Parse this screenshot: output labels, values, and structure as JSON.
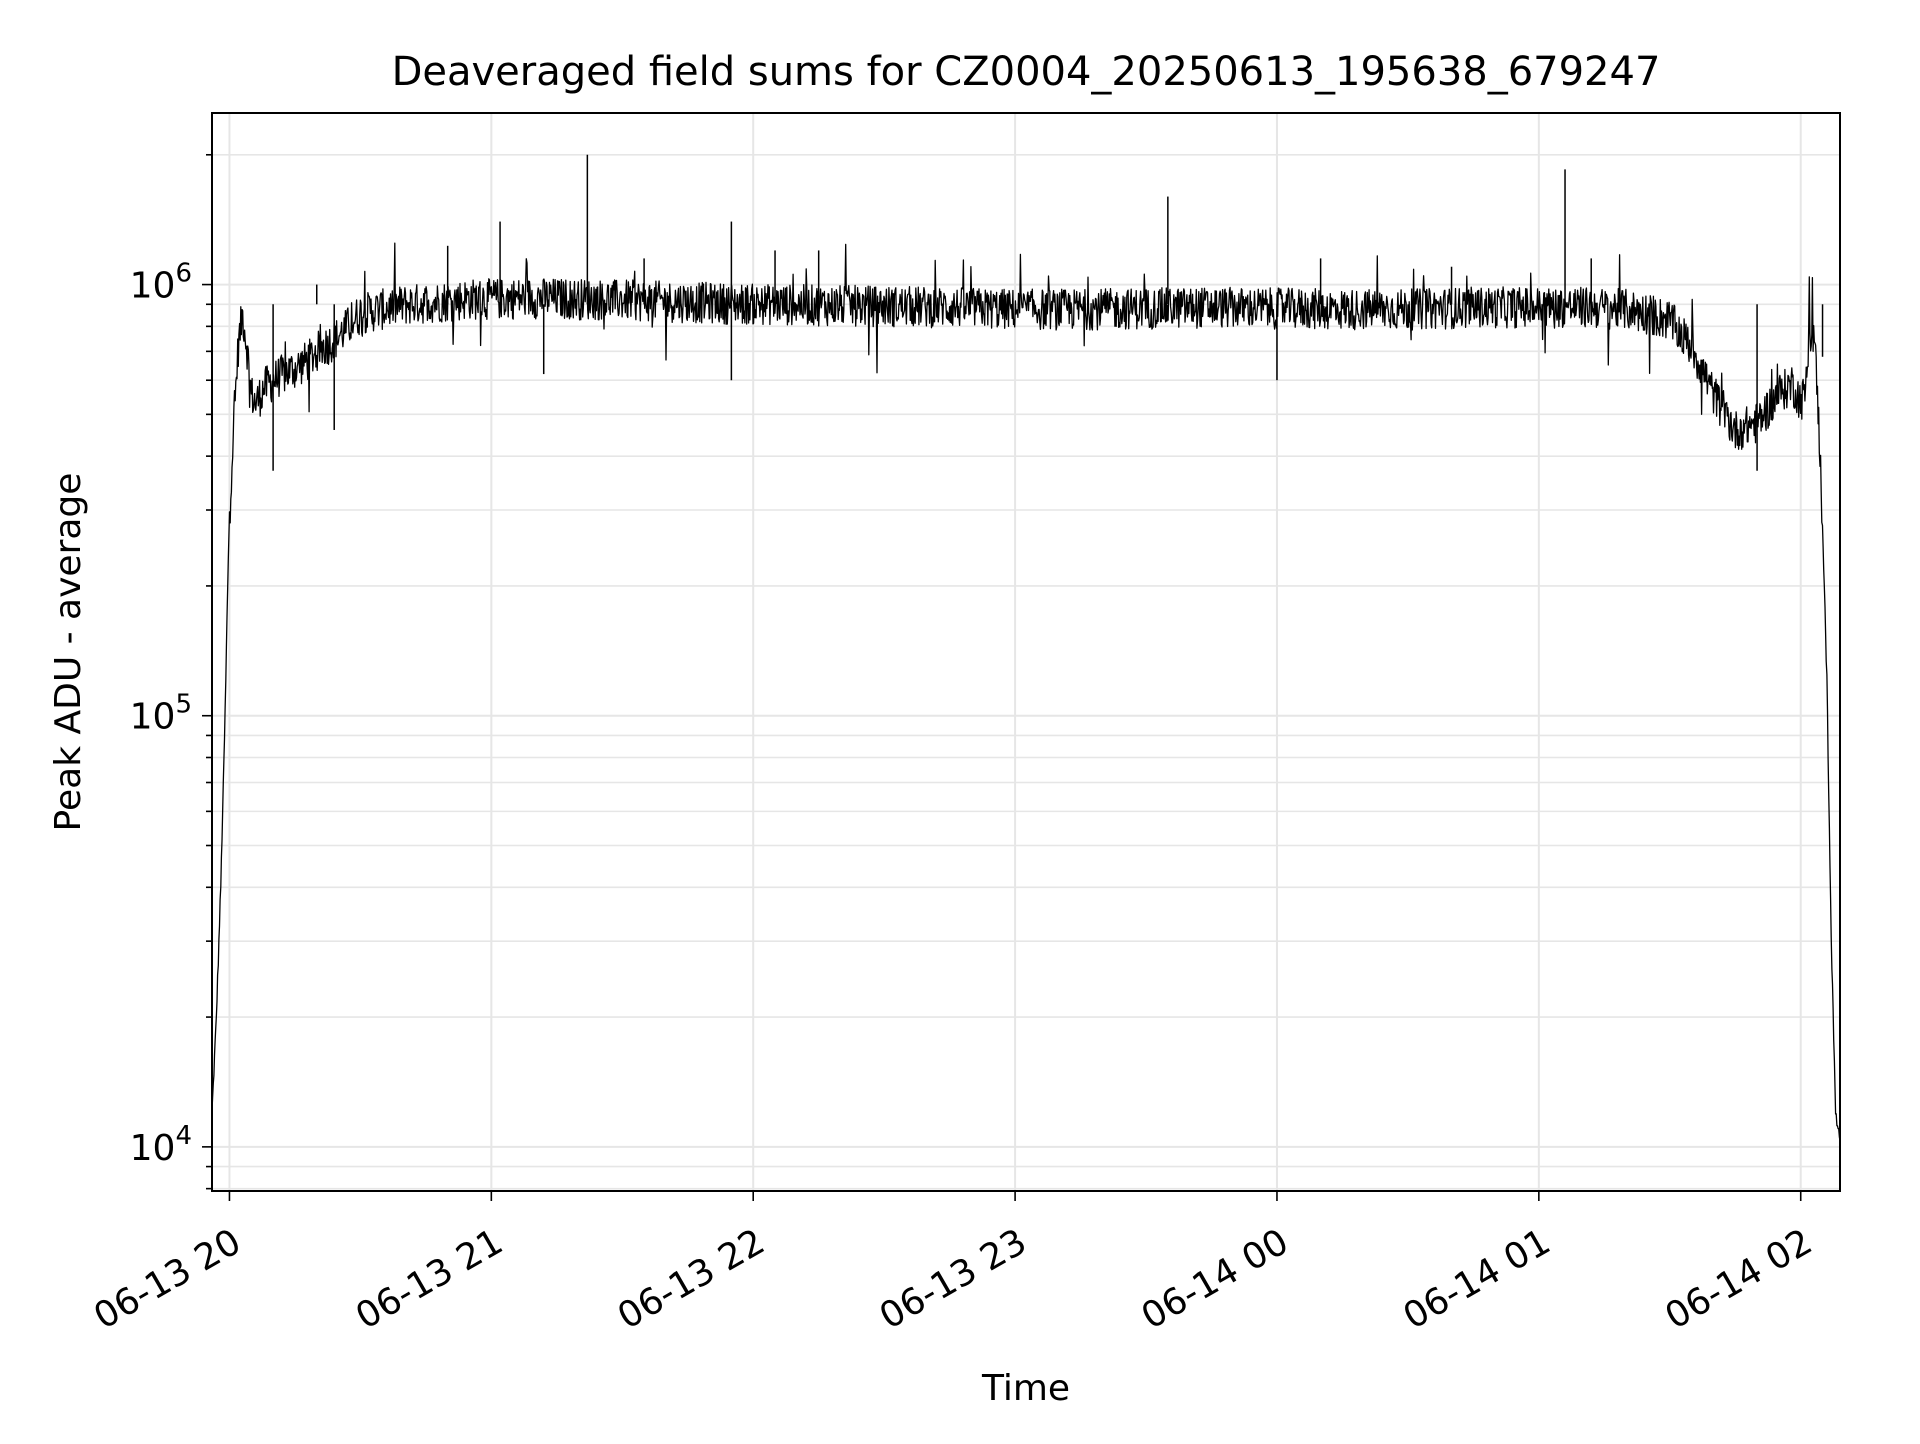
{
  "chart_data": {
    "type": "line",
    "title": "Deaveraged field sums for CZ0004_20250613_195638_679247",
    "xlabel": "Time",
    "ylabel": "Peak ADU - average",
    "xscale": "time",
    "yscale": "log",
    "xlim": [
      "2025-06-13 19:56",
      "2025-06-14 02:09"
    ],
    "ylim": [
      7900,
      2500000
    ],
    "grid": true,
    "legend": "none",
    "x_ticks": [
      {
        "t": "2025-06-13 20:00",
        "label": "06-13 20"
      },
      {
        "t": "2025-06-13 21:00",
        "label": "06-13 21"
      },
      {
        "t": "2025-06-13 22:00",
        "label": "06-13 22"
      },
      {
        "t": "2025-06-13 23:00",
        "label": "06-13 23"
      },
      {
        "t": "2025-06-14 00:00",
        "label": "06-14 00"
      },
      {
        "t": "2025-06-14 01:00",
        "label": "06-14 01"
      },
      {
        "t": "2025-06-14 02:00",
        "label": "06-14 02"
      }
    ],
    "y_ticks": [
      {
        "value": 10000,
        "base": "10",
        "exp": "4"
      },
      {
        "value": 100000,
        "base": "10",
        "exp": "5"
      },
      {
        "value": 1000000,
        "base": "10",
        "exp": "6"
      }
    ],
    "line_color": "#000000",
    "grid_color": "#e6e6e6",
    "series": [
      {
        "color": "#000000",
        "x": [
          "2025-06-13 19:56",
          "2025-06-13 19:57",
          "2025-06-13 19:58",
          "2025-06-13 19:59",
          "2025-06-13 19:59:30",
          "2025-06-13 20:00",
          "2025-06-13 20:01",
          "2025-06-13 20:02",
          "2025-06-13 20:03",
          "2025-06-13 20:04",
          "2025-06-13 20:05",
          "2025-06-13 20:06",
          "2025-06-13 20:08",
          "2025-06-13 20:10",
          "2025-06-13 20:12",
          "2025-06-13 20:15",
          "2025-06-13 20:18",
          "2025-06-13 20:20",
          "2025-06-13 20:25",
          "2025-06-13 20:30",
          "2025-06-13 20:35",
          "2025-06-13 20:40",
          "2025-06-13 20:45",
          "2025-06-13 20:50",
          "2025-06-13 20:55",
          "2025-06-13 21:00",
          "2025-06-13 21:10",
          "2025-06-13 21:20",
          "2025-06-13 21:30",
          "2025-06-13 21:45",
          "2025-06-13 22:00",
          "2025-06-13 22:15",
          "2025-06-13 22:30",
          "2025-06-13 22:45",
          "2025-06-13 23:00",
          "2025-06-13 23:15",
          "2025-06-13 23:30",
          "2025-06-13 23:45",
          "2025-06-14 00:00",
          "2025-06-14 00:15",
          "2025-06-14 00:30",
          "2025-06-14 00:45",
          "2025-06-14 01:00",
          "2025-06-14 01:10",
          "2025-06-14 01:20",
          "2025-06-14 01:25",
          "2025-06-14 01:30",
          "2025-06-14 01:35",
          "2025-06-14 01:40",
          "2025-06-14 01:45",
          "2025-06-14 01:50",
          "2025-06-14 01:55",
          "2025-06-14 01:58",
          "2025-06-14 02:00",
          "2025-06-14 02:01",
          "2025-06-14 02:02",
          "2025-06-14 02:03",
          "2025-06-14 02:04",
          "2025-06-14 02:05",
          "2025-06-14 02:06",
          "2025-06-14 02:07",
          "2025-06-14 02:08",
          "2025-06-14 02:09"
        ],
        "y": [
          12000,
          20000,
          40000,
          100000,
          180000,
          300000,
          480000,
          720000,
          860000,
          720000,
          560000,
          530000,
          580000,
          600000,
          620000,
          640000,
          670000,
          700000,
          760000,
          860000,
          880000,
          900000,
          910000,
          920000,
          930000,
          930000,
          935000,
          930000,
          925000,
          915000,
          905000,
          900000,
          895000,
          890000,
          880000,
          880000,
          885000,
          890000,
          885000,
          880000,
          880000,
          890000,
          890000,
          890000,
          880000,
          860000,
          830000,
          720000,
          560000,
          460000,
          480000,
          560000,
          590000,
          540000,
          560000,
          760000,
          780000,
          520000,
          280000,
          120000,
          30000,
          12000,
          10000
        ]
      }
    ],
    "spikes": [
      {
        "t": "2025-06-13 20:20",
        "y": 1000000
      },
      {
        "t": "2025-06-13 20:24",
        "y": 460000
      },
      {
        "t": "2025-06-13 20:50",
        "y": 1230000
      },
      {
        "t": "2025-06-13 21:02",
        "y": 1400000
      },
      {
        "t": "2025-06-13 21:22",
        "y": 2000000
      },
      {
        "t": "2025-06-13 21:35",
        "y": 1150000
      },
      {
        "t": "2025-06-13 21:55",
        "y": 1400000
      },
      {
        "t": "2025-06-13 22:05",
        "y": 1200000
      },
      {
        "t": "2025-06-13 22:15",
        "y": 1200000
      },
      {
        "t": "2025-06-13 23:35",
        "y": 1600000
      },
      {
        "t": "2025-06-14 00:10",
        "y": 1150000
      },
      {
        "t": "2025-06-14 00:40",
        "y": 1100000
      },
      {
        "t": "2025-06-14 01:06",
        "y": 1850000
      },
      {
        "t": "2025-06-14 01:12",
        "y": 1150000
      },
      {
        "t": "2025-06-14 00:00",
        "y": 600000
      },
      {
        "t": "2025-06-13 21:55",
        "y": 600000
      },
      {
        "t": "2025-06-13 21:12",
        "y": 620000
      },
      {
        "t": "2025-06-13 20:10",
        "y": 370000
      },
      {
        "t": "2025-06-14 01:50",
        "y": 370000
      },
      {
        "t": "2025-06-14 02:05",
        "y": 680000
      }
    ]
  }
}
